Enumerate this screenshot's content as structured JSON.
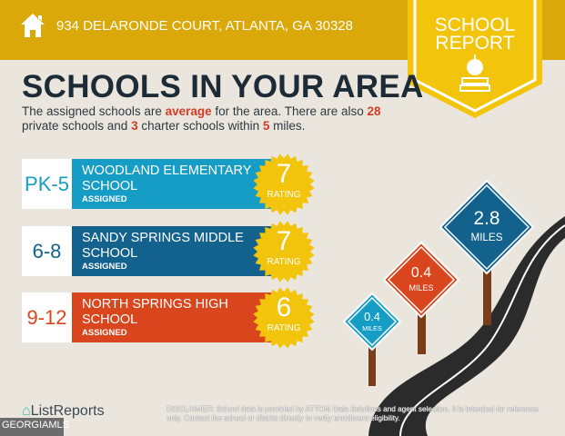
{
  "header": {
    "address": "934 DELARONDE COURT, ATLANTA, GA 30328",
    "ribbon_line1": "SCHOOL",
    "ribbon_line2": "REPORT"
  },
  "title": "SCHOOLS IN YOUR AREA",
  "intro": {
    "p1": "The assigned schools are ",
    "avg": "average",
    "p2": " for the area. There are also ",
    "private": "28",
    "p3": " private schools and ",
    "charter": "3",
    "p4": " charter schools within ",
    "miles": "5",
    "p5": " miles."
  },
  "schools": [
    {
      "grades": "PK-5",
      "name": "WOODLAND ELEMENTARY SCHOOL",
      "status": "ASSIGNED",
      "rating": "7",
      "rating_label": "RATING",
      "color": "#169dc6"
    },
    {
      "grades": "6-8",
      "name": "SANDY SPRINGS MIDDLE SCHOOL",
      "status": "ASSIGNED",
      "rating": "7",
      "rating_label": "RATING",
      "color": "#13628e"
    },
    {
      "grades": "9-12",
      "name": "NORTH SPRINGS HIGH SCHOOL",
      "status": "ASSIGNED",
      "rating": "6",
      "rating_label": "RATING",
      "color": "#d9461e"
    }
  ],
  "signs": [
    {
      "value": "2.8",
      "unit": "MILES",
      "color": "#13628e"
    },
    {
      "value": "0.4",
      "unit": "MILES",
      "color": "#d9461e"
    },
    {
      "value": "0.4",
      "unit": "MILES",
      "color": "#169dc6"
    }
  ],
  "footer": {
    "brand": "ListReports",
    "mls": "GEORGIAMLS",
    "disclaimer_label": "DISCLAIMER:",
    "disclaimer": " School data is provided by ATTOM Data Solutions and agent selection. It is intended for reference only. Contact the school or district directly to verify enrollment eligibility."
  },
  "colors": {
    "header": "#dba80a",
    "ribbon": "#f2c40c",
    "title": "#1c2b36",
    "highlight": "#d23c25",
    "badge": "#f2c40c"
  }
}
